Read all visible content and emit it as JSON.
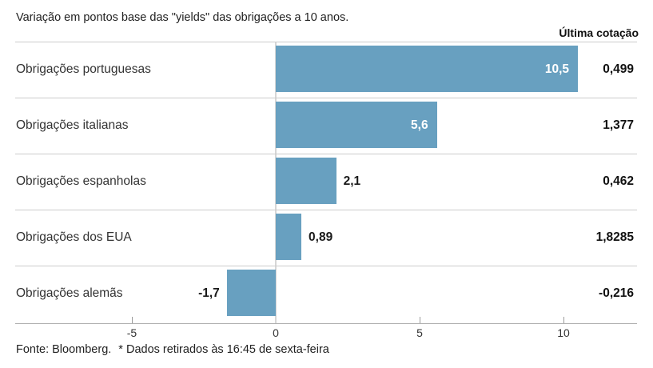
{
  "header": {
    "title": "Variação em pontos base das \"yields\" das obrigações a 10 anos.",
    "right_label": "Última cotação"
  },
  "chart_data": {
    "type": "bar",
    "orientation": "horizontal",
    "title": "Variação em pontos base das \"yields\" das obrigações a 10 anos.",
    "categories": [
      "Obrigações portuguesas",
      "Obrigações italianas",
      "Obrigações espanholas",
      "Obrigações dos EUA",
      "Obrigações alemãs"
    ],
    "values": [
      10.5,
      5.6,
      2.1,
      0.89,
      -1.7
    ],
    "value_labels": [
      "10,5",
      "5,6",
      "2,1",
      "0,89",
      "-1,7"
    ],
    "last_quote_header": "Última cotação",
    "last_quotes": [
      "0,499",
      "1,377",
      "0,462",
      "1,8285",
      "-0,216"
    ],
    "x_ticks": [
      -5,
      0,
      5,
      10
    ],
    "x_tick_labels": [
      "-5",
      "0",
      "5",
      "10"
    ],
    "xlim": [
      -9,
      12.5
    ],
    "grid": "zero-line-only",
    "legend_position": "none",
    "bar_color": "#68a0c0"
  },
  "footer": {
    "source": "Fonte: Bloomberg.",
    "note": "* Dados retirados às 16:45 de sexta-feira"
  }
}
